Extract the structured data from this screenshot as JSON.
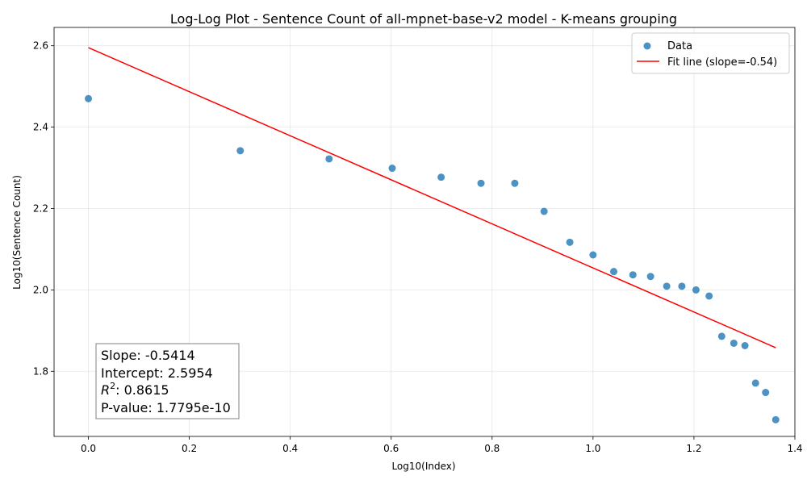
{
  "chart_data": {
    "type": "scatter",
    "title": "Log-Log Plot - Sentence Count of all-mpnet-base-v2 model - K-means grouping",
    "xlabel": "Log10(Index)",
    "ylabel": "Log10(Sentence Count)",
    "xlim": [
      -0.068,
      1.4
    ],
    "ylim": [
      1.64,
      2.645
    ],
    "xticks": [
      0.0,
      0.2,
      0.4,
      0.6,
      0.8,
      1.0,
      1.2,
      1.4
    ],
    "xtick_labels": [
      "0.0",
      "0.2",
      "0.4",
      "0.6",
      "0.8",
      "1.0",
      "1.2",
      "1.4"
    ],
    "yticks": [
      1.8,
      2.0,
      2.2,
      2.4,
      2.6
    ],
    "ytick_labels": [
      "1.8",
      "2.0",
      "2.2",
      "2.4",
      "2.6"
    ],
    "grid": true,
    "legend_position": "top-right",
    "series": [
      {
        "name": "Data",
        "kind": "scatter",
        "color": "#1f77b4",
        "x": [
          0.0,
          0.301,
          0.477,
          0.602,
          0.699,
          0.778,
          0.845,
          0.903,
          0.954,
          1.0,
          1.041,
          1.079,
          1.114,
          1.146,
          1.176,
          1.204,
          1.23,
          1.255,
          1.279,
          1.301,
          1.322,
          1.342,
          1.362
        ],
        "y": [
          2.47,
          2.342,
          2.322,
          2.299,
          2.277,
          2.262,
          2.262,
          2.193,
          2.117,
          2.086,
          2.045,
          2.037,
          2.033,
          2.009,
          2.009,
          2.0,
          1.985,
          1.886,
          1.869,
          1.863,
          1.771,
          1.748,
          1.681
        ]
      },
      {
        "name": "Fit line (slope=-0.54)",
        "kind": "line",
        "color": "#ff0000",
        "x": [
          0.0,
          1.362
        ],
        "y": [
          2.5954,
          1.858
        ]
      }
    ],
    "stats_box": {
      "slope": "Slope: -0.5414",
      "intercept": "Intercept: 2.5954",
      "r2_value": ": 0.8615",
      "pvalue": "P-value: 1.7795e-10"
    }
  }
}
